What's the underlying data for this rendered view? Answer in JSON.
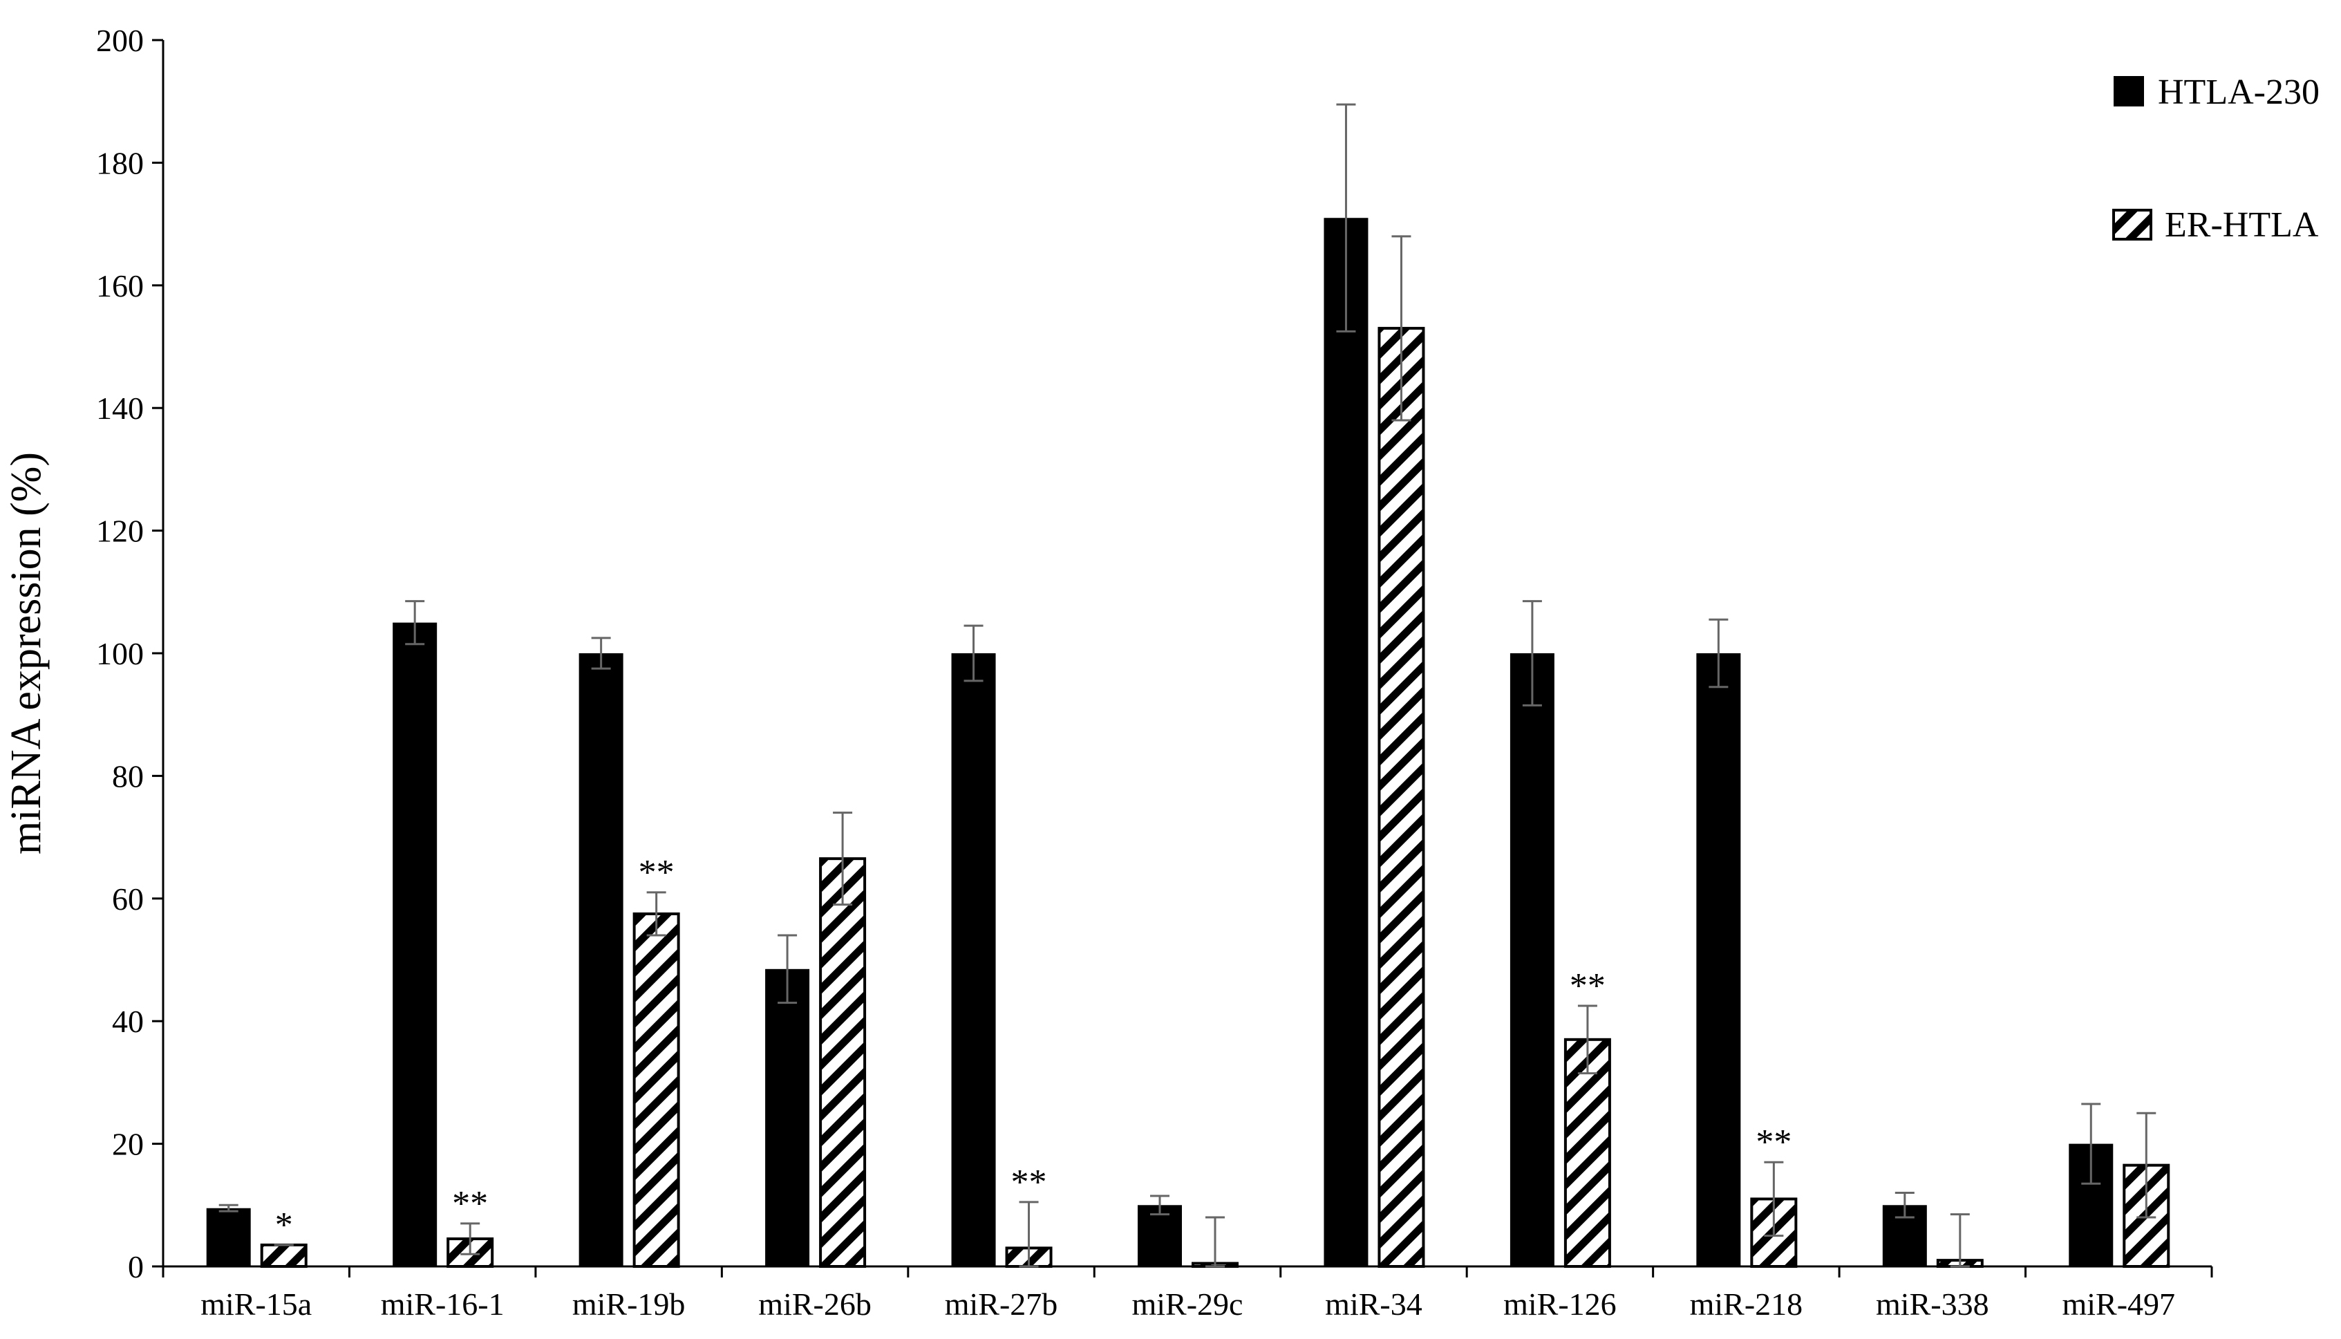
{
  "chart_data": {
    "type": "bar",
    "title": "",
    "xlabel": "",
    "ylabel": "miRNA expression (%)",
    "ylim": [
      0,
      200
    ],
    "yticks": [
      0,
      20,
      40,
      60,
      80,
      100,
      120,
      140,
      160,
      180,
      200
    ],
    "grid": false,
    "legend_position": "top-right",
    "categories": [
      "miR-15a",
      "miR-16-1",
      "miR-19b",
      "miR-26b",
      "miR-27b",
      "miR-29c",
      "miR-34",
      "miR-126",
      "miR-218",
      "miR-338",
      "miR-497"
    ],
    "series": [
      {
        "name": "HTLA-230",
        "fill": "solid",
        "color": "#000000",
        "values": [
          9.5,
          105,
          100,
          48.5,
          100,
          10,
          171,
          100,
          100,
          10,
          20
        ],
        "errors": [
          0.5,
          3.5,
          2.5,
          5.5,
          4.5,
          1.5,
          18.5,
          8.5,
          5.5,
          2,
          6.5
        ]
      },
      {
        "name": "ER-HTLA",
        "fill": "hatched",
        "color": "#000000",
        "values": [
          3.5,
          4.5,
          57.5,
          66.5,
          3,
          0.5,
          153,
          37,
          11,
          1,
          16.5
        ],
        "errors": [
          0,
          2.5,
          3.5,
          7.5,
          7.5,
          7.5,
          15,
          5.5,
          6,
          7.5,
          8.5
        ]
      }
    ],
    "annotations": [
      {
        "category": "miR-15a",
        "series": "ER-HTLA",
        "text": "*"
      },
      {
        "category": "miR-16-1",
        "series": "ER-HTLA",
        "text": "**"
      },
      {
        "category": "miR-19b",
        "series": "ER-HTLA",
        "text": "**"
      },
      {
        "category": "miR-27b",
        "series": "ER-HTLA",
        "text": "**"
      },
      {
        "category": "miR-126",
        "series": "ER-HTLA",
        "text": "**"
      },
      {
        "category": "miR-218",
        "series": "ER-HTLA",
        "text": "**"
      }
    ]
  }
}
